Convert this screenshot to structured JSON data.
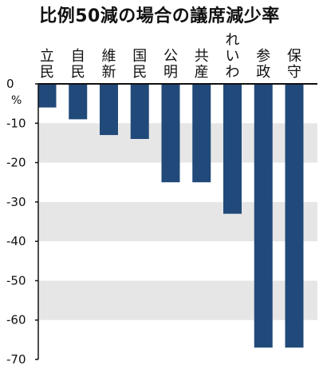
{
  "chart_data": {
    "type": "bar",
    "title": "比例50減の場合の議席減少率",
    "unit_label": "%",
    "categories": [
      "立民",
      "自民",
      "維新",
      "国民",
      "公明",
      "共産",
      "れいわ",
      "参政",
      "保守"
    ],
    "values": [
      -6,
      -9,
      -13,
      -14,
      -25,
      -25,
      -33,
      -67,
      -67
    ],
    "ylim": [
      -70,
      0
    ],
    "yticks": [
      0,
      -10,
      -20,
      -30,
      -40,
      -50,
      -60,
      -70
    ],
    "ytick_labels": [
      "0",
      "-10",
      "-20",
      "-30",
      "-40",
      "-50",
      "-60",
      "-70"
    ],
    "xlabel": "",
    "ylabel": "",
    "grid": "alternating gray bands",
    "colors": {
      "bar": "#214a7a",
      "band": "#e6e6e6",
      "axis": "#111111"
    }
  }
}
